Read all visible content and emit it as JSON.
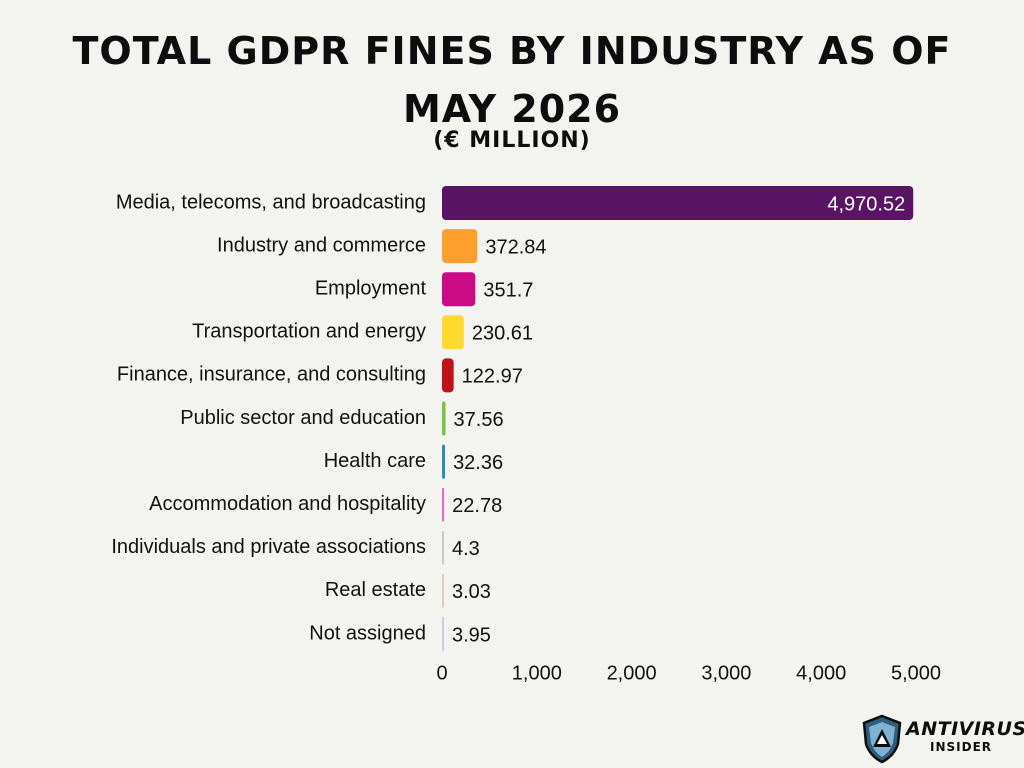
{
  "chart_data": {
    "type": "bar",
    "orientation": "horizontal",
    "title_lines": [
      "TOTAL GDPR FINES BY INDUSTRY AS OF",
      "MAY 2026"
    ],
    "subtitle": "(€ MILLION)",
    "categories": [
      "Media, telecoms, and broadcasting",
      "Industry and commerce",
      "Employment",
      "Transportation and energy",
      "Finance, insurance, and consulting",
      "Public sector and education",
      "Health care",
      "Accommodation and hospitality",
      "Individuals and private associations",
      "Real estate",
      "Not assigned"
    ],
    "values": [
      4970.52,
      372.84,
      351.7,
      230.61,
      122.97,
      37.56,
      32.36,
      22.78,
      4.3,
      3.03,
      3.95
    ],
    "value_labels": [
      "4,970.52",
      "372.84",
      "351.7",
      "230.61",
      "122.97",
      "37.56",
      "32.36",
      "22.78",
      "4.3",
      "3.03",
      "3.95"
    ],
    "colors": [
      "#5a1466",
      "#ffa02e",
      "#cc0a85",
      "#ffd92e",
      "#c0111b",
      "#7dc242",
      "#2a8fb3",
      "#e06ec8",
      "#c9c9c9",
      "#e8c6c6",
      "#c6cde6"
    ],
    "xlim": [
      0,
      5000
    ],
    "xticks": [
      0,
      1000,
      2000,
      3000,
      4000,
      5000
    ],
    "xtick_labels": [
      "0",
      "1,000",
      "2,000",
      "3,000",
      "4,000",
      "5,000"
    ],
    "grid": false,
    "legend": "none"
  },
  "logo": {
    "text": "ANTIVIRUS",
    "subtext": "INSIDER"
  }
}
